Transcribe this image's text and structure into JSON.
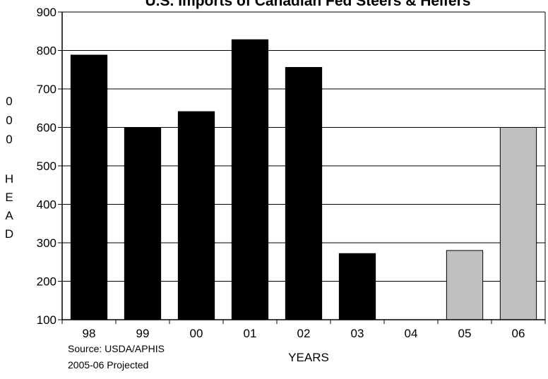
{
  "chart_data": {
    "type": "bar",
    "title": "U.S. Imports of Canadian Fed Steers & Heifers",
    "xlabel": "YEARS",
    "ylabel": "0 0 0   H E A D",
    "categories": [
      "98",
      "99",
      "00",
      "01",
      "02",
      "03",
      "04",
      "05",
      "06"
    ],
    "values": [
      788,
      600,
      641,
      828,
      756,
      272,
      null,
      280,
      600
    ],
    "projected": [
      false,
      false,
      false,
      false,
      false,
      false,
      false,
      true,
      true
    ],
    "ylim": [
      100,
      900
    ],
    "yticks": [
      100,
      200,
      300,
      400,
      500,
      600,
      700,
      800,
      900
    ],
    "grid": true,
    "colors": {
      "actual": "#000000",
      "projected": "#c0c0c0"
    },
    "notes": [
      "Source: USDA/APHIS",
      "2005-06 Projected"
    ]
  }
}
